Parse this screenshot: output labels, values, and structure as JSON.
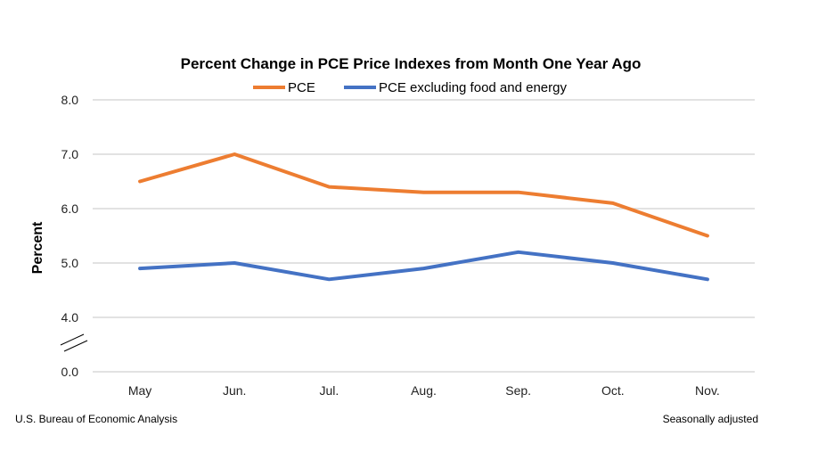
{
  "chart_data": {
    "type": "line",
    "title": "Percent Change in PCE Price Indexes from Month One Year Ago",
    "xlabel": "",
    "ylabel": "Percent",
    "categories": [
      "May",
      "Jun.",
      "Jul.",
      "Aug.",
      "Sep.",
      "Oct.",
      "Nov."
    ],
    "series": [
      {
        "name": "PCE",
        "color": "#ED7D31",
        "values": [
          6.5,
          7.0,
          6.4,
          6.3,
          6.3,
          6.1,
          5.5
        ]
      },
      {
        "name": "PCE excluding food and energy",
        "color": "#4472C4",
        "values": [
          4.9,
          5.0,
          4.7,
          4.9,
          5.2,
          5.0,
          4.7
        ]
      }
    ],
    "yticks": [
      "8.0",
      "7.0",
      "6.0",
      "5.0",
      "4.0",
      "0.0"
    ],
    "ylim": [
      4.0,
      8.0
    ],
    "axis_break": "between 0.0 and 4.0",
    "grid": true,
    "legend_position": "top-center"
  },
  "footer": {
    "source": "U.S. Bureau of Economic Analysis",
    "note": "Seasonally adjusted"
  }
}
